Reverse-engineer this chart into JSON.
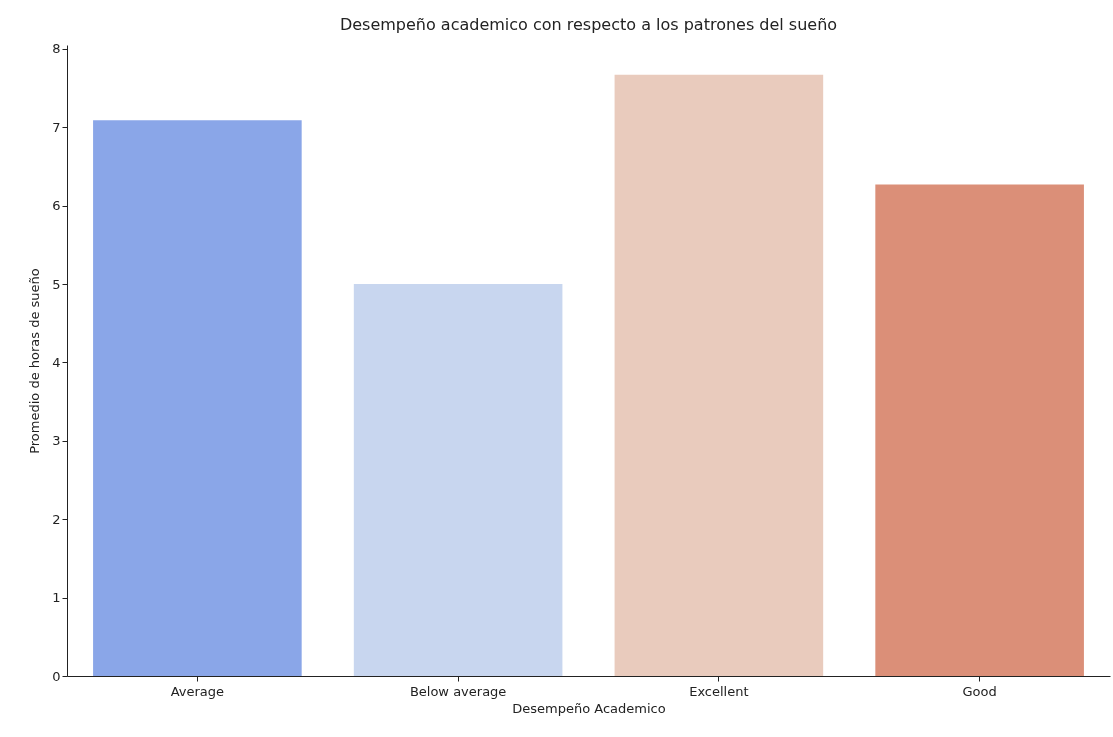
{
  "chart_data": {
    "type": "bar",
    "title": "Desempeño academico con respecto a los patrones del sueño",
    "xlabel": "Desempeño Academico",
    "ylabel": "Promedio de horas de sueño",
    "categories": [
      "Average",
      "Below average",
      "Excellent",
      "Good"
    ],
    "values": [
      7.09,
      5.0,
      7.67,
      6.27
    ],
    "colors": [
      "#8aa6e8",
      "#c8d6ef",
      "#e9cbbd",
      "#db8f78"
    ],
    "ylim": [
      0,
      8.05
    ],
    "yticks": [
      0,
      1,
      2,
      3,
      4,
      5,
      6,
      7,
      8
    ],
    "grid": false
  }
}
